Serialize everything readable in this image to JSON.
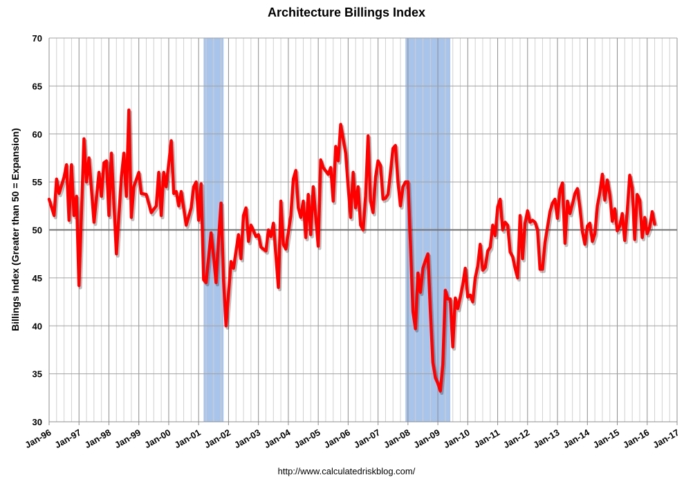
{
  "chart_data": {
    "type": "line",
    "title": "Architecture Billings Index",
    "ylabel": "Billings Index (Greater than 50 = Expansion)",
    "xlabel": "",
    "footer": "http://www.calculatedriskblog.com/",
    "ylim": [
      30,
      70
    ],
    "yticks": [
      30,
      35,
      40,
      45,
      50,
      55,
      60,
      65,
      70
    ],
    "xlim": [
      "1996-01",
      "2017-01"
    ],
    "xticks": [
      "Jan-96",
      "Jan-97",
      "Jan-98",
      "Jan-99",
      "Jan-00",
      "Jan-01",
      "Jan-02",
      "Jan-03",
      "Jan-04",
      "Jan-05",
      "Jan-06",
      "Jan-07",
      "Jan-08",
      "Jan-09",
      "Jan-10",
      "Jan-11",
      "Jan-12",
      "Jan-13",
      "Jan-14",
      "Jan-15",
      "Jan-16",
      "Jan-17"
    ],
    "grid": true,
    "reference_line": 50,
    "line_color": "#FF0000",
    "recession_color": "#A9C4EB",
    "recessions": [
      [
        "2001-03",
        "2001-11"
      ],
      [
        "2007-12",
        "2009-06"
      ]
    ],
    "series": [
      {
        "points": [
          [
            "1996-01",
            53.2
          ],
          [
            "1996-03",
            51.5
          ],
          [
            "1996-04",
            55.3
          ],
          [
            "1996-05",
            53.8
          ],
          [
            "1996-07",
            55.5
          ],
          [
            "1996-08",
            56.8
          ],
          [
            "1996-09",
            51.0
          ],
          [
            "1996-10",
            56.8
          ],
          [
            "1996-11",
            51.5
          ],
          [
            "1996-12",
            53.5
          ],
          [
            "1997-01",
            44.2
          ],
          [
            "1997-03",
            59.5
          ],
          [
            "1997-04",
            55.0
          ],
          [
            "1997-05",
            57.5
          ],
          [
            "1997-07",
            50.8
          ],
          [
            "1997-09",
            56.0
          ],
          [
            "1997-10",
            53.5
          ],
          [
            "1997-11",
            57.0
          ],
          [
            "1997-12",
            57.2
          ],
          [
            "1998-01",
            51.5
          ],
          [
            "1998-02",
            58.0
          ],
          [
            "1998-04",
            47.5
          ],
          [
            "1998-06",
            55.5
          ],
          [
            "1998-07",
            58.0
          ],
          [
            "1998-08",
            53.5
          ],
          [
            "1998-09",
            62.5
          ],
          [
            "1998-10",
            51.3
          ],
          [
            "1998-11",
            54.5
          ],
          [
            "1999-01",
            56.0
          ],
          [
            "1999-02",
            53.8
          ],
          [
            "1999-04",
            53.7
          ],
          [
            "1999-06",
            51.8
          ],
          [
            "1999-08",
            52.5
          ],
          [
            "1999-09",
            56.0
          ],
          [
            "1999-10",
            51.5
          ],
          [
            "1999-11",
            56.0
          ],
          [
            "1999-12",
            54.5
          ],
          [
            "2000-02",
            59.3
          ],
          [
            "2000-03",
            53.8
          ],
          [
            "2000-04",
            54.0
          ],
          [
            "2000-05",
            52.5
          ],
          [
            "2000-06",
            54.0
          ],
          [
            "2000-08",
            50.5
          ],
          [
            "2000-10",
            52.3
          ],
          [
            "2000-11",
            54.5
          ],
          [
            "2000-12",
            55.0
          ],
          [
            "2001-01",
            51.0
          ],
          [
            "2001-02",
            54.8
          ],
          [
            "2001-03",
            44.8
          ],
          [
            "2001-04",
            44.5
          ],
          [
            "2001-06",
            49.7
          ],
          [
            "2001-07",
            47.3
          ],
          [
            "2001-08",
            44.5
          ],
          [
            "2001-09",
            49.0
          ],
          [
            "2001-10",
            52.8
          ],
          [
            "2001-11",
            44.8
          ],
          [
            "2001-12",
            40.0
          ],
          [
            "2002-02",
            46.7
          ],
          [
            "2002-03",
            46.0
          ],
          [
            "2002-05",
            49.5
          ],
          [
            "2002-06",
            47.0
          ],
          [
            "2002-07",
            51.5
          ],
          [
            "2002-08",
            52.3
          ],
          [
            "2002-09",
            48.8
          ],
          [
            "2002-10",
            50.5
          ],
          [
            "2002-12",
            49.3
          ],
          [
            "2003-01",
            49.5
          ],
          [
            "2003-02",
            48.2
          ],
          [
            "2003-04",
            47.8
          ],
          [
            "2003-05",
            50.0
          ],
          [
            "2003-06",
            49.3
          ],
          [
            "2003-07",
            50.7
          ],
          [
            "2003-09",
            44.0
          ],
          [
            "2003-10",
            53.0
          ],
          [
            "2003-11",
            48.5
          ],
          [
            "2003-12",
            48.0
          ],
          [
            "2004-02",
            51.5
          ],
          [
            "2004-03",
            55.3
          ],
          [
            "2004-04",
            56.2
          ],
          [
            "2004-05",
            52.3
          ],
          [
            "2004-06",
            51.3
          ],
          [
            "2004-07",
            53.0
          ],
          [
            "2004-08",
            49.2
          ],
          [
            "2004-09",
            53.7
          ],
          [
            "2004-10",
            49.5
          ],
          [
            "2004-11",
            54.5
          ],
          [
            "2005-01",
            48.3
          ],
          [
            "2005-02",
            57.3
          ],
          [
            "2005-03",
            56.5
          ],
          [
            "2005-05",
            55.8
          ],
          [
            "2005-06",
            56.5
          ],
          [
            "2005-07",
            53.0
          ],
          [
            "2005-08",
            58.7
          ],
          [
            "2005-09",
            57.2
          ],
          [
            "2005-10",
            61.0
          ],
          [
            "2005-11",
            59.5
          ],
          [
            "2005-12",
            58.0
          ],
          [
            "2006-01",
            54.5
          ],
          [
            "2006-02",
            51.3
          ],
          [
            "2006-03",
            56.0
          ],
          [
            "2006-04",
            52.3
          ],
          [
            "2006-05",
            54.5
          ],
          [
            "2006-06",
            50.5
          ],
          [
            "2006-07",
            50.0
          ],
          [
            "2006-08",
            53.5
          ],
          [
            "2006-09",
            59.8
          ],
          [
            "2006-10",
            53.0
          ],
          [
            "2006-11",
            51.8
          ],
          [
            "2006-12",
            55.5
          ],
          [
            "2007-01",
            57.2
          ],
          [
            "2007-02",
            56.7
          ],
          [
            "2007-03",
            53.2
          ],
          [
            "2007-04",
            53.3
          ],
          [
            "2007-05",
            53.7
          ],
          [
            "2007-06",
            56.0
          ],
          [
            "2007-07",
            58.5
          ],
          [
            "2007-08",
            58.8
          ],
          [
            "2007-09",
            55.0
          ],
          [
            "2007-10",
            52.5
          ],
          [
            "2007-11",
            54.5
          ],
          [
            "2007-12",
            55.0
          ],
          [
            "2008-01",
            55.0
          ],
          [
            "2008-02",
            48.5
          ],
          [
            "2008-03",
            41.5
          ],
          [
            "2008-04",
            39.7
          ],
          [
            "2008-05",
            45.5
          ],
          [
            "2008-06",
            43.5
          ],
          [
            "2008-07",
            46.0
          ],
          [
            "2008-08",
            46.8
          ],
          [
            "2008-09",
            47.5
          ],
          [
            "2008-10",
            41.5
          ],
          [
            "2008-11",
            36.2
          ],
          [
            "2008-12",
            34.6
          ],
          [
            "2009-01",
            34.0
          ],
          [
            "2009-02",
            33.2
          ],
          [
            "2009-03",
            36.0
          ],
          [
            "2009-04",
            43.7
          ],
          [
            "2009-05",
            42.8
          ],
          [
            "2009-06",
            42.8
          ],
          [
            "2009-07",
            37.8
          ],
          [
            "2009-08",
            42.9
          ],
          [
            "2009-09",
            41.8
          ],
          [
            "2009-10",
            43.0
          ],
          [
            "2009-11",
            44.3
          ],
          [
            "2009-12",
            46.0
          ],
          [
            "2010-01",
            43.0
          ],
          [
            "2010-02",
            43.2
          ],
          [
            "2010-03",
            42.5
          ],
          [
            "2010-04",
            45.0
          ],
          [
            "2010-05",
            46.2
          ],
          [
            "2010-06",
            48.5
          ],
          [
            "2010-07",
            45.8
          ],
          [
            "2010-08",
            46.1
          ],
          [
            "2010-09",
            47.8
          ],
          [
            "2010-10",
            48.2
          ],
          [
            "2010-11",
            50.5
          ],
          [
            "2010-12",
            49.4
          ],
          [
            "2011-01",
            52.4
          ],
          [
            "2011-02",
            53.2
          ],
          [
            "2011-03",
            50.0
          ],
          [
            "2011-04",
            50.8
          ],
          [
            "2011-05",
            50.5
          ],
          [
            "2011-06",
            47.7
          ],
          [
            "2011-07",
            47.2
          ],
          [
            "2011-08",
            46.0
          ],
          [
            "2011-09",
            45.0
          ],
          [
            "2011-10",
            51.5
          ],
          [
            "2011-11",
            47.0
          ],
          [
            "2011-12",
            50.7
          ],
          [
            "2012-01",
            52.0
          ],
          [
            "2012-02",
            50.8
          ],
          [
            "2012-03",
            51.0
          ],
          [
            "2012-04",
            50.8
          ],
          [
            "2012-05",
            50.0
          ],
          [
            "2012-06",
            45.9
          ],
          [
            "2012-07",
            45.9
          ],
          [
            "2012-08",
            48.7
          ],
          [
            "2012-09",
            50.3
          ],
          [
            "2012-10",
            51.9
          ],
          [
            "2012-11",
            52.8
          ],
          [
            "2012-12",
            53.2
          ],
          [
            "2013-01",
            51.2
          ],
          [
            "2013-02",
            54.2
          ],
          [
            "2013-03",
            54.9
          ],
          [
            "2013-04",
            48.6
          ],
          [
            "2013-05",
            53.0
          ],
          [
            "2013-06",
            51.7
          ],
          [
            "2013-07",
            52.7
          ],
          [
            "2013-08",
            53.8
          ],
          [
            "2013-09",
            54.3
          ],
          [
            "2013-10",
            52.3
          ],
          [
            "2013-11",
            49.8
          ],
          [
            "2013-12",
            48.5
          ],
          [
            "2014-01",
            50.4
          ],
          [
            "2014-02",
            50.7
          ],
          [
            "2014-03",
            48.8
          ],
          [
            "2014-04",
            49.6
          ],
          [
            "2014-05",
            52.5
          ],
          [
            "2014-06",
            53.9
          ],
          [
            "2014-07",
            55.8
          ],
          [
            "2014-08",
            53.1
          ],
          [
            "2014-09",
            55.2
          ],
          [
            "2014-10",
            53.7
          ],
          [
            "2014-11",
            50.9
          ],
          [
            "2014-12",
            52.2
          ],
          [
            "2015-01",
            49.9
          ],
          [
            "2015-02",
            50.4
          ],
          [
            "2015-03",
            51.7
          ],
          [
            "2015-04",
            48.9
          ],
          [
            "2015-05",
            51.9
          ],
          [
            "2015-06",
            55.7
          ],
          [
            "2015-07",
            54.4
          ],
          [
            "2015-08",
            49.0
          ],
          [
            "2015-09",
            53.7
          ],
          [
            "2015-10",
            53.1
          ],
          [
            "2015-11",
            49.2
          ],
          [
            "2015-12",
            51.3
          ],
          [
            "2016-01",
            49.6
          ],
          [
            "2016-02",
            50.3
          ],
          [
            "2016-03",
            51.9
          ],
          [
            "2016-04",
            50.6
          ]
        ]
      }
    ]
  }
}
